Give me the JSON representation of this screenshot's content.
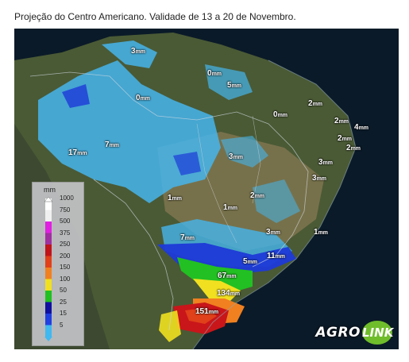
{
  "title": "Projeção do Centro Americano. Validade de 13 a 20 de Novembro.",
  "legend": {
    "unit": "mm",
    "levels": [
      {
        "label": "1000",
        "color": "#ffffff"
      },
      {
        "label": "750",
        "color": "#f0f0f0"
      },
      {
        "label": "500",
        "color": "#e020e0"
      },
      {
        "label": "375",
        "color": "#a0309f"
      },
      {
        "label": "250",
        "color": "#c0141a"
      },
      {
        "label": "200",
        "color": "#e0401a"
      },
      {
        "label": "150",
        "color": "#f08020"
      },
      {
        "label": "100",
        "color": "#f0e020"
      },
      {
        "label": "50",
        "color": "#20c020"
      },
      {
        "label": "25",
        "color": "#1010a0"
      },
      {
        "label": "15",
        "color": "#2040e0"
      },
      {
        "label": "5",
        "color": "#40b8f0"
      }
    ]
  },
  "map_labels": [
    {
      "value": "3",
      "unit": "mm"
    },
    {
      "value": "0",
      "unit": "mm"
    },
    {
      "value": "5",
      "unit": "mm"
    },
    {
      "value": "0",
      "unit": "mm"
    },
    {
      "value": "2",
      "unit": "mm"
    },
    {
      "value": "0",
      "unit": "mm"
    },
    {
      "value": "2",
      "unit": "mm"
    },
    {
      "value": "4",
      "unit": "mm"
    },
    {
      "value": "2",
      "unit": "mm"
    },
    {
      "value": "2",
      "unit": "mm"
    },
    {
      "value": "17",
      "unit": "mm"
    },
    {
      "value": "7",
      "unit": "mm"
    },
    {
      "value": "3",
      "unit": "mm"
    },
    {
      "value": "3",
      "unit": "mm"
    },
    {
      "value": "3",
      "unit": "mm"
    },
    {
      "value": "1",
      "unit": "mm"
    },
    {
      "value": "2",
      "unit": "mm"
    },
    {
      "value": "1",
      "unit": "mm"
    },
    {
      "value": "7",
      "unit": "mm"
    },
    {
      "value": "3",
      "unit": "mm"
    },
    {
      "value": "1",
      "unit": "mm"
    },
    {
      "value": "5",
      "unit": "mm"
    },
    {
      "value": "11",
      "unit": "mm"
    },
    {
      "value": "67",
      "unit": "mm"
    },
    {
      "value": "134",
      "unit": "mm"
    },
    {
      "value": "151",
      "unit": "mm"
    }
  ],
  "logo": {
    "part1": "AGRO",
    "part2": "LINK",
    "text": "AGROLINK"
  }
}
